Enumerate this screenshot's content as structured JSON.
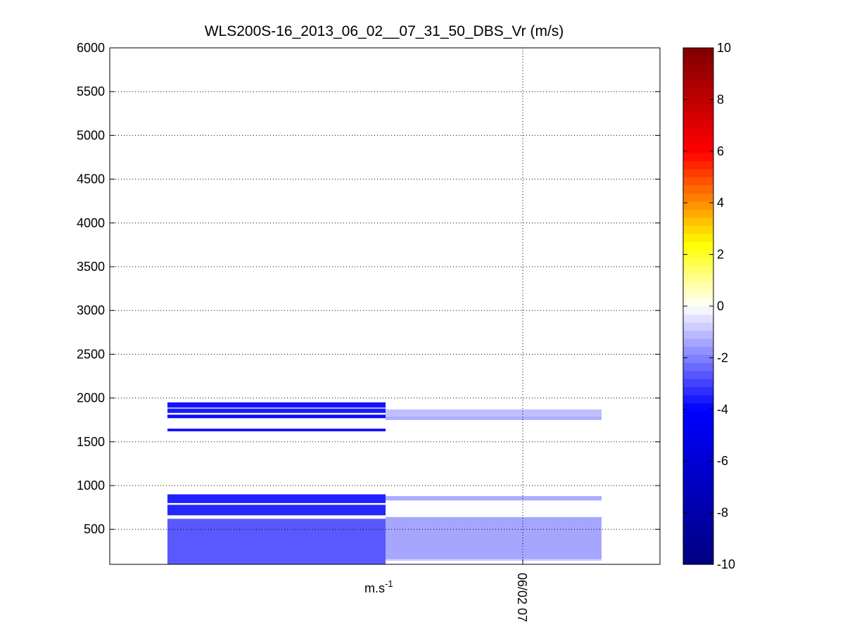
{
  "chart_data": {
    "type": "heatmap",
    "title": "WLS200S-16_2013_06_02__07_31_50_DBS_Vr (m/s)",
    "xlabel": "m.s",
    "xlabel_superscript": "-1",
    "x_tick_labels": [
      "06/02 07"
    ],
    "ylim": [
      100,
      6000
    ],
    "y_ticks": [
      500,
      1000,
      1500,
      2000,
      2500,
      3000,
      3500,
      4000,
      4500,
      5000,
      5500,
      6000
    ],
    "grid": true,
    "colorbar": {
      "range": [
        -10,
        10
      ],
      "ticks": [
        -10,
        -8,
        -6,
        -4,
        -2,
        0,
        2,
        4,
        6,
        8,
        10
      ],
      "placement": "right",
      "colormap": [
        "#00007f",
        "#0000ff",
        "#ffffff",
        "#ffff00",
        "#ff0000",
        "#7f0000"
      ]
    },
    "columns": [
      {
        "name": "",
        "bands": [
          {
            "y0": 100,
            "y1": 620,
            "value": -2.6
          },
          {
            "y0": 660,
            "y1": 780,
            "value": -3.4
          },
          {
            "y0": 800,
            "y1": 900,
            "value": -3.5
          },
          {
            "y0": 1620,
            "y1": 1650,
            "value": -3.8
          },
          {
            "y0": 1770,
            "y1": 1810,
            "value": -3.8
          },
          {
            "y0": 1830,
            "y1": 1880,
            "value": -3.6
          },
          {
            "y0": 1890,
            "y1": 1950,
            "value": -3.7
          }
        ]
      },
      {
        "name": "",
        "bands": [
          {
            "y0": 140,
            "y1": 160,
            "value": -0.8
          },
          {
            "y0": 160,
            "y1": 640,
            "value": -1.4
          },
          {
            "y0": 830,
            "y1": 880,
            "value": -1.3
          },
          {
            "y0": 1750,
            "y1": 1790,
            "value": -1.3
          },
          {
            "y0": 1790,
            "y1": 1870,
            "value": -1.0
          }
        ]
      }
    ]
  }
}
